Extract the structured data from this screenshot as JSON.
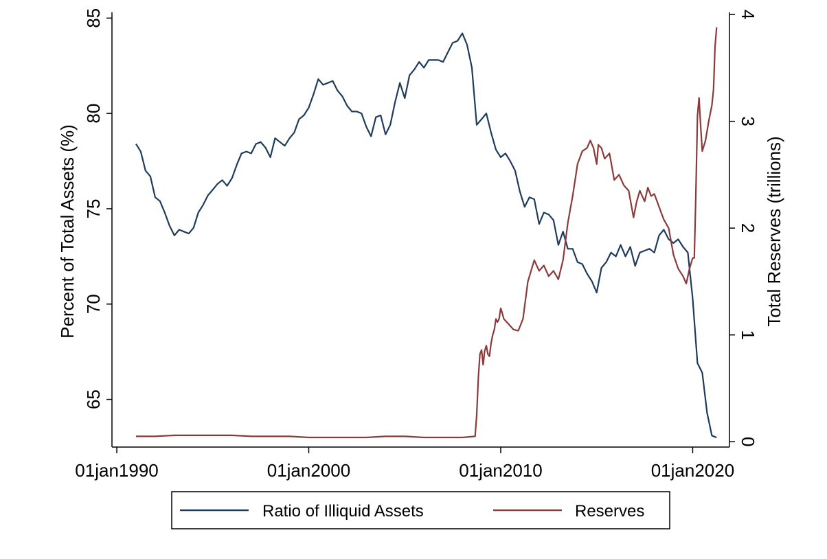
{
  "chart_data": {
    "type": "line",
    "title": "",
    "xlabel": "",
    "ylabel": "Percent of Total Assets (%)",
    "y2label": "Total Reserves (trillions)",
    "x_ticks": [
      "01jan1990",
      "01jan2000",
      "01jan2010",
      "01jan2020"
    ],
    "y_ticks": [
      "65",
      "70",
      "75",
      "80",
      "85"
    ],
    "y2_ticks": [
      "0",
      "1",
      "2",
      "3",
      "4"
    ],
    "xlim": [
      "1989-10-01",
      "2021-12-01"
    ],
    "ylim": [
      62.5,
      85.3
    ],
    "y2lim": [
      -0.05,
      4.02
    ],
    "grid": false,
    "legend_position": "bottom",
    "legend": [
      "Ratio of Illiquid Assets",
      "Reserves"
    ],
    "series": [
      {
        "name": "Ratio of Illiquid Assets",
        "axis": "left",
        "color": "#1f3b5c",
        "points": [
          [
            "1991-01-01",
            78.4
          ],
          [
            "1991-04-01",
            78.0
          ],
          [
            "1991-07-01",
            77.0
          ],
          [
            "1991-10-01",
            76.7
          ],
          [
            "1992-01-01",
            75.6
          ],
          [
            "1992-04-01",
            75.4
          ],
          [
            "1992-07-01",
            74.8
          ],
          [
            "1992-10-01",
            74.1
          ],
          [
            "1993-01-01",
            73.6
          ],
          [
            "1993-04-01",
            73.9
          ],
          [
            "1993-07-01",
            73.8
          ],
          [
            "1993-10-01",
            73.7
          ],
          [
            "1994-01-01",
            74.0
          ],
          [
            "1994-04-01",
            74.8
          ],
          [
            "1994-07-01",
            75.2
          ],
          [
            "1994-10-01",
            75.7
          ],
          [
            "1995-01-01",
            76.0
          ],
          [
            "1995-04-01",
            76.3
          ],
          [
            "1995-07-01",
            76.5
          ],
          [
            "1995-10-01",
            76.2
          ],
          [
            "1996-01-01",
            76.6
          ],
          [
            "1996-04-01",
            77.3
          ],
          [
            "1996-07-01",
            77.9
          ],
          [
            "1996-10-01",
            78.0
          ],
          [
            "1997-01-01",
            77.9
          ],
          [
            "1997-04-01",
            78.4
          ],
          [
            "1997-07-01",
            78.5
          ],
          [
            "1997-10-01",
            78.2
          ],
          [
            "1998-01-01",
            77.7
          ],
          [
            "1998-04-01",
            78.7
          ],
          [
            "1998-07-01",
            78.5
          ],
          [
            "1998-10-01",
            78.3
          ],
          [
            "1999-01-01",
            78.7
          ],
          [
            "1999-04-01",
            79.0
          ],
          [
            "1999-07-01",
            79.7
          ],
          [
            "1999-10-01",
            79.9
          ],
          [
            "2000-01-01",
            80.3
          ],
          [
            "2000-04-01",
            81.0
          ],
          [
            "2000-07-01",
            81.8
          ],
          [
            "2000-10-01",
            81.5
          ],
          [
            "2001-01-01",
            81.6
          ],
          [
            "2001-04-01",
            81.7
          ],
          [
            "2001-07-01",
            81.2
          ],
          [
            "2001-10-01",
            80.9
          ],
          [
            "2002-01-01",
            80.4
          ],
          [
            "2002-04-01",
            80.1
          ],
          [
            "2002-07-01",
            80.1
          ],
          [
            "2002-10-01",
            80.0
          ],
          [
            "2003-01-01",
            79.3
          ],
          [
            "2003-04-01",
            78.8
          ],
          [
            "2003-07-01",
            79.8
          ],
          [
            "2003-10-01",
            79.9
          ],
          [
            "2004-01-01",
            78.9
          ],
          [
            "2004-04-01",
            79.4
          ],
          [
            "2004-07-01",
            80.6
          ],
          [
            "2004-10-01",
            81.6
          ],
          [
            "2005-01-01",
            80.8
          ],
          [
            "2005-04-01",
            82.0
          ],
          [
            "2005-07-01",
            82.3
          ],
          [
            "2005-10-01",
            82.7
          ],
          [
            "2006-01-01",
            82.4
          ],
          [
            "2006-04-01",
            82.8
          ],
          [
            "2006-07-01",
            82.8
          ],
          [
            "2006-10-01",
            82.8
          ],
          [
            "2007-01-01",
            82.7
          ],
          [
            "2007-04-01",
            83.2
          ],
          [
            "2007-07-01",
            83.7
          ],
          [
            "2007-10-01",
            83.8
          ],
          [
            "2008-01-01",
            84.2
          ],
          [
            "2008-04-01",
            83.6
          ],
          [
            "2008-07-01",
            82.4
          ],
          [
            "2008-10-01",
            79.4
          ],
          [
            "2009-01-01",
            79.7
          ],
          [
            "2009-04-01",
            80.0
          ],
          [
            "2009-07-01",
            79.0
          ],
          [
            "2009-10-01",
            78.1
          ],
          [
            "2010-01-01",
            77.7
          ],
          [
            "2010-04-01",
            77.9
          ],
          [
            "2010-07-01",
            77.5
          ],
          [
            "2010-10-01",
            77.0
          ],
          [
            "2011-01-01",
            75.9
          ],
          [
            "2011-04-01",
            75.1
          ],
          [
            "2011-07-01",
            75.6
          ],
          [
            "2011-10-01",
            75.5
          ],
          [
            "2012-01-01",
            74.2
          ],
          [
            "2012-04-01",
            74.8
          ],
          [
            "2012-07-01",
            74.7
          ],
          [
            "2012-10-01",
            74.4
          ],
          [
            "2013-01-01",
            73.1
          ],
          [
            "2013-04-01",
            73.8
          ],
          [
            "2013-07-01",
            72.9
          ],
          [
            "2013-10-01",
            72.9
          ],
          [
            "2014-01-01",
            72.2
          ],
          [
            "2014-04-01",
            72.1
          ],
          [
            "2014-07-01",
            71.6
          ],
          [
            "2014-10-01",
            71.2
          ],
          [
            "2015-01-01",
            70.6
          ],
          [
            "2015-04-01",
            71.9
          ],
          [
            "2015-07-01",
            72.2
          ],
          [
            "2015-10-01",
            72.7
          ],
          [
            "2016-01-01",
            72.5
          ],
          [
            "2016-04-01",
            73.1
          ],
          [
            "2016-07-01",
            72.5
          ],
          [
            "2016-10-01",
            73.0
          ],
          [
            "2017-01-01",
            72.0
          ],
          [
            "2017-04-01",
            72.7
          ],
          [
            "2017-07-01",
            72.8
          ],
          [
            "2017-10-01",
            72.9
          ],
          [
            "2018-01-01",
            72.7
          ],
          [
            "2018-04-01",
            73.6
          ],
          [
            "2018-07-01",
            73.9
          ],
          [
            "2018-10-01",
            73.4
          ],
          [
            "2019-01-01",
            73.2
          ],
          [
            "2019-04-01",
            73.4
          ],
          [
            "2019-07-01",
            73.0
          ],
          [
            "2019-10-01",
            72.7
          ],
          [
            "2020-01-01",
            70.3
          ],
          [
            "2020-04-01",
            66.9
          ],
          [
            "2020-07-01",
            66.4
          ],
          [
            "2020-10-01",
            64.3
          ],
          [
            "2021-01-01",
            63.1
          ],
          [
            "2021-04-01",
            63.0
          ]
        ]
      },
      {
        "name": "Reserves",
        "axis": "right",
        "color": "#8b3a3a",
        "points": [
          [
            "1991-01-01",
            0.05
          ],
          [
            "1992-01-01",
            0.05
          ],
          [
            "1993-01-01",
            0.06
          ],
          [
            "1994-01-01",
            0.06
          ],
          [
            "1995-01-01",
            0.06
          ],
          [
            "1996-01-01",
            0.06
          ],
          [
            "1997-01-01",
            0.05
          ],
          [
            "1998-01-01",
            0.05
          ],
          [
            "1999-01-01",
            0.05
          ],
          [
            "2000-01-01",
            0.04
          ],
          [
            "2001-01-01",
            0.04
          ],
          [
            "2002-01-01",
            0.04
          ],
          [
            "2003-01-01",
            0.04
          ],
          [
            "2004-01-01",
            0.05
          ],
          [
            "2005-01-01",
            0.05
          ],
          [
            "2006-01-01",
            0.04
          ],
          [
            "2007-01-01",
            0.04
          ],
          [
            "2008-01-01",
            0.04
          ],
          [
            "2008-09-01",
            0.05
          ],
          [
            "2008-10-01",
            0.25
          ],
          [
            "2008-11-01",
            0.6
          ],
          [
            "2008-12-01",
            0.82
          ],
          [
            "2009-01-01",
            0.86
          ],
          [
            "2009-02-01",
            0.72
          ],
          [
            "2009-03-01",
            0.85
          ],
          [
            "2009-04-01",
            0.9
          ],
          [
            "2009-05-01",
            0.82
          ],
          [
            "2009-06-01",
            0.8
          ],
          [
            "2009-07-01",
            0.92
          ],
          [
            "2009-08-01",
            1.0
          ],
          [
            "2009-09-01",
            1.05
          ],
          [
            "2009-10-01",
            1.15
          ],
          [
            "2009-11-01",
            1.12
          ],
          [
            "2009-12-01",
            1.15
          ],
          [
            "2010-01-01",
            1.25
          ],
          [
            "2010-02-01",
            1.2
          ],
          [
            "2010-03-01",
            1.15
          ],
          [
            "2010-06-01",
            1.1
          ],
          [
            "2010-09-01",
            1.05
          ],
          [
            "2010-12-01",
            1.04
          ],
          [
            "2011-03-01",
            1.15
          ],
          [
            "2011-06-01",
            1.5
          ],
          [
            "2011-09-01",
            1.65
          ],
          [
            "2011-10-01",
            1.7
          ],
          [
            "2012-01-01",
            1.6
          ],
          [
            "2012-04-01",
            1.65
          ],
          [
            "2012-07-01",
            1.55
          ],
          [
            "2012-10-01",
            1.6
          ],
          [
            "2013-01-01",
            1.52
          ],
          [
            "2013-04-01",
            1.7
          ],
          [
            "2013-07-01",
            2.05
          ],
          [
            "2013-10-01",
            2.3
          ],
          [
            "2014-01-01",
            2.6
          ],
          [
            "2014-04-01",
            2.72
          ],
          [
            "2014-07-01",
            2.75
          ],
          [
            "2014-09-01",
            2.82
          ],
          [
            "2014-11-01",
            2.75
          ],
          [
            "2015-01-01",
            2.6
          ],
          [
            "2015-02-01",
            2.78
          ],
          [
            "2015-04-01",
            2.75
          ],
          [
            "2015-06-01",
            2.65
          ],
          [
            "2015-09-01",
            2.7
          ],
          [
            "2015-12-01",
            2.45
          ],
          [
            "2016-03-01",
            2.5
          ],
          [
            "2016-06-01",
            2.4
          ],
          [
            "2016-09-01",
            2.35
          ],
          [
            "2016-12-01",
            2.1
          ],
          [
            "2017-02-01",
            2.25
          ],
          [
            "2017-04-01",
            2.35
          ],
          [
            "2017-07-01",
            2.25
          ],
          [
            "2017-09-01",
            2.38
          ],
          [
            "2017-11-01",
            2.3
          ],
          [
            "2018-01-01",
            2.32
          ],
          [
            "2018-04-01",
            2.2
          ],
          [
            "2018-07-01",
            2.08
          ],
          [
            "2018-10-01",
            2.0
          ],
          [
            "2019-01-01",
            1.75
          ],
          [
            "2019-04-01",
            1.62
          ],
          [
            "2019-07-01",
            1.55
          ],
          [
            "2019-09-01",
            1.48
          ],
          [
            "2019-11-01",
            1.62
          ],
          [
            "2020-01-01",
            1.72
          ],
          [
            "2020-02-01",
            1.72
          ],
          [
            "2020-03-01",
            2.3
          ],
          [
            "2020-04-01",
            3.05
          ],
          [
            "2020-05-01",
            3.22
          ],
          [
            "2020-06-01",
            2.95
          ],
          [
            "2020-07-01",
            2.72
          ],
          [
            "2020-09-01",
            2.82
          ],
          [
            "2020-11-01",
            3.0
          ],
          [
            "2021-01-01",
            3.15
          ],
          [
            "2021-02-01",
            3.3
          ],
          [
            "2021-03-01",
            3.7
          ],
          [
            "2021-04-01",
            3.88
          ]
        ]
      }
    ]
  }
}
